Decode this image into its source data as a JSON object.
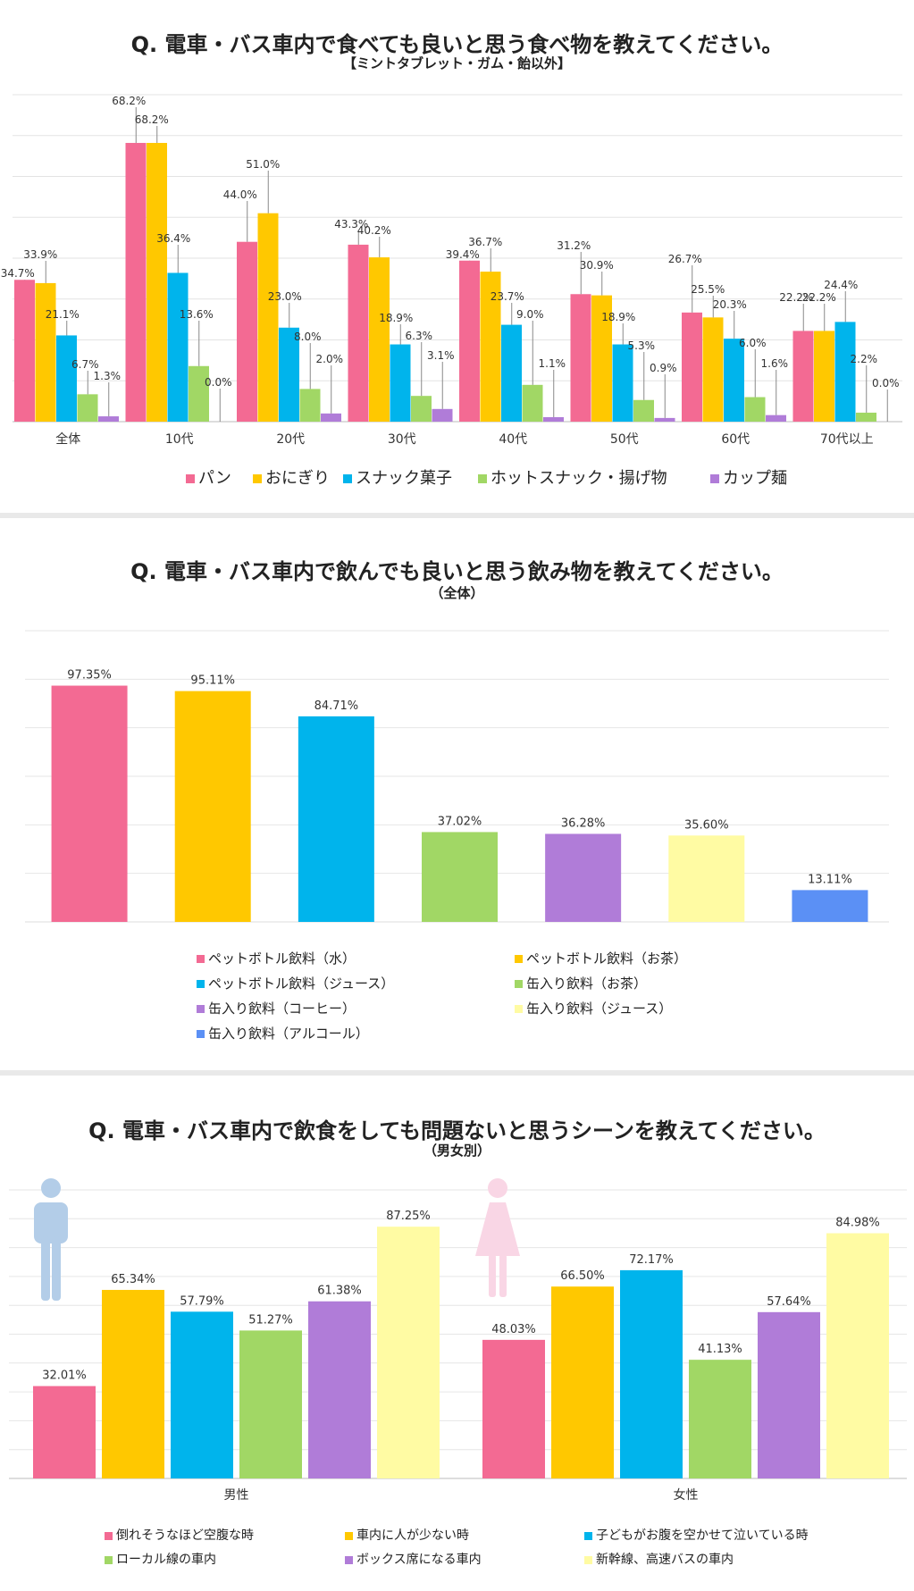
{
  "colors": {
    "pink": "#F36A93",
    "yellow": "#FFC800",
    "cyan": "#00B4EC",
    "green": "#A1D765",
    "purple": "#B07CD8",
    "lightyellow": "#FFFBA3",
    "blue": "#5B90F5",
    "male_icon": "#B3CDE8",
    "female_icon": "#F9D6E5"
  },
  "chart1": {
    "title": "Q.  電車・バス車内で食べても良いと思う食べ物を教えてください。",
    "subtitle": "【ミントタブレット・ガム・飴以外】",
    "chart_data": {
      "type": "bar",
      "categories": [
        "全体",
        "10代",
        "20代",
        "30代",
        "40代",
        "50代",
        "60代",
        "70代以上"
      ],
      "series": [
        {
          "name": "パン",
          "color": "pink",
          "values": [
            34.7,
            68.2,
            44.0,
            43.3,
            39.4,
            31.2,
            26.7,
            22.2
          ]
        },
        {
          "name": "おにぎり",
          "color": "yellow",
          "values": [
            33.9,
            68.2,
            51.0,
            40.2,
            36.7,
            30.9,
            25.5,
            22.2
          ]
        },
        {
          "name": "スナック菓子",
          "color": "cyan",
          "values": [
            21.1,
            36.4,
            23.0,
            18.9,
            23.7,
            18.9,
            20.3,
            24.4
          ]
        },
        {
          "name": "ホットスナック・揚げ物",
          "color": "green",
          "values": [
            6.7,
            13.6,
            8.0,
            6.3,
            9.0,
            5.3,
            6.0,
            2.2
          ]
        },
        {
          "name": "カップ麺",
          "color": "purple",
          "values": [
            1.3,
            0.0,
            2.0,
            3.1,
            1.1,
            0.9,
            1.6,
            0.0
          ]
        }
      ],
      "ylim": [
        0,
        80
      ],
      "grid": true,
      "legend": "bottom"
    }
  },
  "chart2": {
    "title": "Q.  電車・バス車内で飲んでも良いと思う飲み物を教えてください。",
    "subtitle": "（全体）",
    "chart_data": {
      "type": "bar",
      "categories": [
        "ペットボトル飲料（水）",
        "ペットボトル飲料（お茶）",
        "ペットボトル飲料（ジュース）",
        "缶入り飲料（お茶）",
        "缶入り飲料（コーヒー）",
        "缶入り飲料（ジュース）",
        "缶入り飲料（アルコール）"
      ],
      "values": [
        97.35,
        95.11,
        84.71,
        37.02,
        36.28,
        35.6,
        13.11
      ],
      "colors": [
        "pink",
        "yellow",
        "cyan",
        "green",
        "purple",
        "lightyellow",
        "blue"
      ],
      "ylim": [
        0,
        120
      ],
      "grid": true,
      "legend": "bottom"
    }
  },
  "chart3": {
    "title": "Q.  電車・バス車内で飲食をしても問題ないと思うシーンを教えてください。",
    "subtitle": "（男女別）",
    "chart_data": {
      "type": "bar",
      "categories": [
        "男性",
        "女性"
      ],
      "series": [
        {
          "name": "倒れそうなほど空腹な時",
          "color": "pink",
          "values": [
            32.01,
            48.03
          ]
        },
        {
          "name": "車内に人が少ない時",
          "color": "yellow",
          "values": [
            65.34,
            66.5
          ]
        },
        {
          "name": "子どもがお腹を空かせて泣いている時",
          "color": "cyan",
          "values": [
            57.79,
            72.17
          ]
        },
        {
          "name": "ローカル線の車内",
          "color": "green",
          "values": [
            51.27,
            41.13
          ]
        },
        {
          "name": "ボックス席になる車内",
          "color": "purple",
          "values": [
            61.38,
            57.64
          ]
        },
        {
          "name": "新幹線、高速バスの車内",
          "color": "lightyellow",
          "values": [
            87.25,
            84.98
          ]
        }
      ],
      "ylim": [
        0,
        100
      ],
      "grid": true,
      "legend": "bottom"
    }
  }
}
